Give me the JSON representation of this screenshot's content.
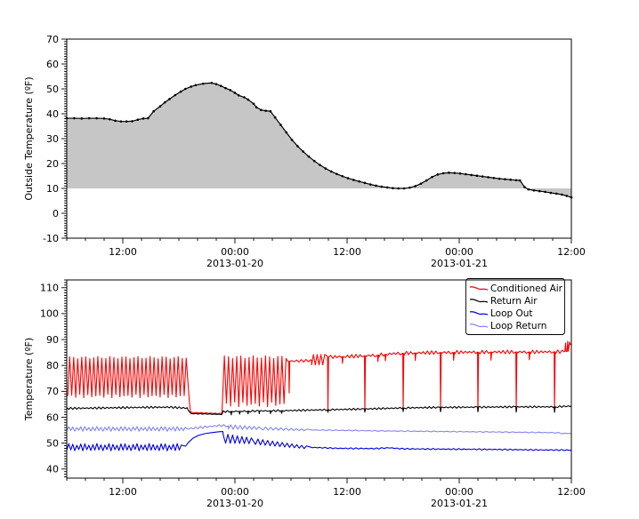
{
  "figure": {
    "background": "#ffffff"
  },
  "chart_data": [
    {
      "id": "outside-temp",
      "type": "area",
      "title": "",
      "ylabel": "Outside Temperature (ºF)",
      "xlabel": "",
      "ylim": [
        -10,
        70
      ],
      "ytick_min": -10,
      "ytick_max": 70,
      "ytick_step": 10,
      "y_minor_step": 1,
      "x_hours": 54,
      "x_minor_step": 2,
      "xticks": [
        {
          "t": 6,
          "label": "12:00"
        },
        {
          "t": 18,
          "label": "00:00",
          "date": "2013-01-20"
        },
        {
          "t": 30,
          "label": "12:00"
        },
        {
          "t": 42,
          "label": "00:00",
          "date": "2013-01-21"
        },
        {
          "t": 54,
          "label": "12:00"
        }
      ],
      "fill_to": 10,
      "fill_color": "#c6c6c6",
      "line_color": "#000000",
      "marker": "dot",
      "points": [
        [
          0,
          38.2
        ],
        [
          0.8,
          38.2
        ],
        [
          1.6,
          38.1
        ],
        [
          2.4,
          38.2
        ],
        [
          3.2,
          38.2
        ],
        [
          4,
          38.1
        ],
        [
          4.6,
          37.8
        ],
        [
          5.2,
          37.2
        ],
        [
          5.8,
          36.9
        ],
        [
          6.4,
          36.9
        ],
        [
          7,
          37.0
        ],
        [
          7.6,
          37.6
        ],
        [
          8.2,
          38.1
        ],
        [
          8.7,
          38.2
        ],
        [
          9.3,
          41.0
        ],
        [
          10,
          43.0
        ],
        [
          10.5,
          44.6
        ],
        [
          11,
          45.9
        ],
        [
          11.6,
          47.5
        ],
        [
          12.2,
          48.9
        ],
        [
          12.7,
          50.0
        ],
        [
          13.3,
          50.9
        ],
        [
          13.8,
          51.5
        ],
        [
          14.6,
          52.1
        ],
        [
          15.5,
          52.4
        ],
        [
          16,
          51.9
        ],
        [
          16.5,
          51.2
        ],
        [
          17,
          50.3
        ],
        [
          17.5,
          49.5
        ],
        [
          18,
          48.4
        ],
        [
          18.4,
          47.4
        ],
        [
          19,
          46.6
        ],
        [
          19.4,
          45.7
        ],
        [
          20,
          44.0
        ],
        [
          20.3,
          42.6
        ],
        [
          20.8,
          41.5
        ],
        [
          21.3,
          41.2
        ],
        [
          21.8,
          41.0
        ],
        [
          22.3,
          38.5
        ],
        [
          22.9,
          35.5
        ],
        [
          23.5,
          32.5
        ],
        [
          24.1,
          29.5
        ],
        [
          24.7,
          27.0
        ],
        [
          25.3,
          24.8
        ],
        [
          25.9,
          22.8
        ],
        [
          26.5,
          21.0
        ],
        [
          27.1,
          19.4
        ],
        [
          27.7,
          18.0
        ],
        [
          28.3,
          16.8
        ],
        [
          28.9,
          15.8
        ],
        [
          29.5,
          14.9
        ],
        [
          30.1,
          14.1
        ],
        [
          30.7,
          13.4
        ],
        [
          31.3,
          12.8
        ],
        [
          31.9,
          12.2
        ],
        [
          32.5,
          11.6
        ],
        [
          33.1,
          11.1
        ],
        [
          33.7,
          10.7
        ],
        [
          34.3,
          10.4
        ],
        [
          34.9,
          10.1
        ],
        [
          35.5,
          10.0
        ],
        [
          36.1,
          10.0
        ],
        [
          36.7,
          10.3
        ],
        [
          37.3,
          10.9
        ],
        [
          37.9,
          11.9
        ],
        [
          38.5,
          13.2
        ],
        [
          39.1,
          14.6
        ],
        [
          39.7,
          15.6
        ],
        [
          40.3,
          16.1
        ],
        [
          40.9,
          16.3
        ],
        [
          41.5,
          16.2
        ],
        [
          42.1,
          16.0
        ],
        [
          42.7,
          15.7
        ],
        [
          43.3,
          15.4
        ],
        [
          43.9,
          15.1
        ],
        [
          44.5,
          14.8
        ],
        [
          45.1,
          14.5
        ],
        [
          45.7,
          14.2
        ],
        [
          46.3,
          13.9
        ],
        [
          46.9,
          13.7
        ],
        [
          47.5,
          13.5
        ],
        [
          48.1,
          13.3
        ],
        [
          48.5,
          13.2
        ],
        [
          49,
          10.5
        ],
        [
          49.4,
          9.6
        ],
        [
          50,
          9.2
        ],
        [
          50.6,
          8.9
        ],
        [
          51.2,
          8.6
        ],
        [
          51.8,
          8.2
        ],
        [
          52.4,
          7.9
        ],
        [
          53,
          7.5
        ],
        [
          53.5,
          7.0
        ],
        [
          54,
          6.4
        ]
      ]
    },
    {
      "id": "temperature",
      "type": "line",
      "title": "",
      "ylabel": "Temperature (ºF)",
      "xlabel": "",
      "ylim": [
        36.5,
        113
      ],
      "ytick_min": 40,
      "ytick_max": 110,
      "ytick_step": 10,
      "y_minor_step": 1,
      "x_hours": 54,
      "x_minor_step": 2,
      "xticks": [
        {
          "t": 6,
          "label": "12:00"
        },
        {
          "t": 18,
          "label": "00:00",
          "date": "2013-01-20"
        },
        {
          "t": 30,
          "label": "12:00"
        },
        {
          "t": 42,
          "label": "00:00",
          "date": "2013-01-21"
        },
        {
          "t": 54,
          "label": "12:00"
        }
      ],
      "legend_position": "upper right",
      "series": [
        {
          "name": "Conditioned Air",
          "color": "#fe0000",
          "parts": [
            {
              "type": "osc",
              "t0": 0.1,
              "t1": 13.1,
              "lo": 68.2,
              "hi": 83.0,
              "period": 0.43,
              "loVar": 1.3,
              "hiVar": 0.9
            },
            {
              "type": "line",
              "pts": [
                [
                  13.12,
                  66.0
                ],
                [
                  13.25,
                  62.0
                ],
                [
                  13.4,
                  61.8
                ]
              ]
            },
            {
              "type": "trend",
              "pts": [
                [
                  13.4,
                  61.8
                ],
                [
                  16.6,
                  61.4
                ]
              ],
              "amp": 0.15,
              "period": 0.5
            },
            {
              "type": "osc",
              "t0": 16.65,
              "t1": 23.6,
              "lo": 65.0,
              "hi": 83.2,
              "period": 0.44,
              "loVar": 1.8,
              "hiVar": 1.1
            },
            {
              "type": "trend",
              "pts": [
                [
                  23.6,
                  81.6
                ],
                [
                  26.2,
                  81.9
                ]
              ],
              "amp": 0.5,
              "period": 0.5,
              "spikes": [
                [
                  23.8,
                  69.4
                ]
              ]
            },
            {
              "type": "osc",
              "t0": 26.2,
              "t1": 27.8,
              "lo": 80.2,
              "hi": 84.2,
              "period": 0.4
            },
            {
              "type": "trend",
              "pts": [
                [
                  27.8,
                  83.2
                ],
                [
                  31,
                  83.6
                ],
                [
                  33,
                  83.9
                ],
                [
                  35,
                  84.6
                ],
                [
                  38,
                  84.9
                ],
                [
                  42,
                  85.1
                ],
                [
                  46,
                  85.2
                ],
                [
                  50,
                  85.2
                ],
                [
                  53.2,
                  85.3
                ]
              ],
              "amp": 0.7,
              "period": 0.45,
              "spikes": [
                [
                  27.95,
                  62.4
                ],
                [
                  31.9,
                  62.2
                ],
                [
                  36.0,
                  62.6
                ],
                [
                  40.0,
                  62.4
                ],
                [
                  44.0,
                  62.3
                ],
                [
                  48.1,
                  62.2
                ],
                [
                  52.2,
                  62.5
                ],
                [
                  29.5,
                  80.8
                ],
                [
                  33.3,
                  81.5
                ],
                [
                  34.1,
                  81.8
                ],
                [
                  37.3,
                  81.9
                ],
                [
                  41.4,
                  82.0
                ],
                [
                  45.4,
                  82.0
                ],
                [
                  49.5,
                  82.2
                ]
              ]
            },
            {
              "type": "line",
              "pts": [
                [
                  53.3,
                  85.3
                ],
                [
                  53.38,
                  88.6
                ],
                [
                  53.44,
                  85.4
                ],
                [
                  53.55,
                  85.4
                ],
                [
                  53.6,
                  89.3
                ],
                [
                  53.68,
                  85.5
                ],
                [
                  53.8,
                  89.0
                ],
                [
                  53.9,
                  88.0
                ],
                [
                  54,
                  88.3
                ]
              ]
            }
          ]
        },
        {
          "name": "Return Air",
          "color": "#000000",
          "parts": [
            {
              "type": "trend",
              "pts": [
                [
                  0,
                  63.4
                ],
                [
                  4,
                  63.6
                ],
                [
                  8,
                  63.8
                ],
                [
                  11,
                  63.9
                ],
                [
                  12.9,
                  63.5
                ]
              ],
              "amp": 0.4,
              "period": 0.43
            },
            {
              "type": "line",
              "pts": [
                [
                  13.05,
                  62.4
                ],
                [
                  13.3,
                  61.4
                ]
              ]
            },
            {
              "type": "trend",
              "pts": [
                [
                  13.3,
                  61.4
                ],
                [
                  16.6,
                  61.1
                ]
              ],
              "amp": 0.12,
              "period": 0.5
            },
            {
              "type": "trend",
              "pts": [
                [
                  16.75,
                  62.2
                ],
                [
                  20,
                  62.4
                ],
                [
                  24,
                  62.6
                ],
                [
                  28,
                  62.9
                ],
                [
                  32,
                  63.2
                ],
                [
                  36,
                  63.6
                ],
                [
                  40,
                  63.8
                ],
                [
                  44,
                  63.9
                ],
                [
                  48,
                  64.0
                ],
                [
                  52,
                  64.0
                ],
                [
                  54,
                  64.3
                ]
              ],
              "amp": 0.35,
              "period": 0.45,
              "spikes": [
                [
                  17.6,
                  60.9
                ],
                [
                  18.5,
                  61.2
                ],
                [
                  19.4,
                  61.3
                ],
                [
                  20.6,
                  61.4
                ],
                [
                  21.8,
                  61.4
                ],
                [
                  23.0,
                  61.5
                ],
                [
                  27.95,
                  61.9
                ],
                [
                  31.9,
                  62.0
                ],
                [
                  36.0,
                  62.2
                ],
                [
                  40.0,
                  62.1
                ],
                [
                  44.0,
                  62.1
                ],
                [
                  48.1,
                  62.0
                ],
                [
                  52.2,
                  61.9
                ]
              ]
            }
          ]
        },
        {
          "name": "Loop Out",
          "color": "#0000dd",
          "parts": [
            {
              "type": "osc",
              "t0": 0,
              "t1": 12.6,
              "lo": 47.3,
              "hi": 49.5,
              "period": 0.43,
              "loVar": 0.5,
              "hiVar": 0.7
            },
            {
              "type": "line",
              "pts": [
                [
                  12.7,
                  48.8
                ],
                [
                  13.0,
                  50.2
                ],
                [
                  13.5,
                  51.9
                ],
                [
                  14.1,
                  53.0
                ],
                [
                  14.8,
                  53.7
                ],
                [
                  15.6,
                  54.1
                ],
                [
                  16.3,
                  54.4
                ],
                [
                  16.7,
                  54.5
                ]
              ]
            },
            {
              "type": "line",
              "pts": [
                [
                  16.78,
                  52.6
                ],
                [
                  16.95,
                  50.7
                ]
              ]
            },
            {
              "type": "osc",
              "t0": 17.0,
              "t1": 20.2,
              "lo": 50.0,
              "hi": 53.4,
              "lo1": 49.8,
              "hi1": 52.0,
              "period": 0.5
            },
            {
              "type": "osc",
              "t0": 20.2,
              "t1": 26.0,
              "lo": 49.5,
              "hi": 51.6,
              "lo1": 47.9,
              "hi1": 48.9,
              "period": 0.52
            },
            {
              "type": "trend",
              "pts": [
                [
                  26,
                  48.4
                ],
                [
                  29,
                  48.0
                ],
                [
                  33,
                  47.9
                ],
                [
                  34.5,
                  48.2
                ],
                [
                  36,
                  47.8
                ],
                [
                  40,
                  47.7
                ],
                [
                  45,
                  47.6
                ],
                [
                  50,
                  47.4
                ],
                [
                  54,
                  47.3
                ]
              ],
              "amp": 0.25,
              "period": 0.55
            }
          ]
        },
        {
          "name": "Loop Return",
          "color": "#8585ef",
          "parts": [
            {
              "type": "osc",
              "t0": 0,
              "t1": 12.8,
              "lo": 54.8,
              "hi": 56.2,
              "period": 0.43,
              "loVar": 0.4,
              "hiVar": 0.4
            },
            {
              "type": "trend",
              "pts": [
                [
                  12.8,
                  55.5
                ],
                [
                  14.5,
                  56.1
                ],
                [
                  16.3,
                  56.8
                ],
                [
                  17.3,
                  56.7
                ]
              ],
              "amp": 0.45,
              "period": 0.5
            },
            {
              "type": "osc",
              "t0": 17.3,
              "t1": 21.0,
              "lo": 55.4,
              "hi": 57.1,
              "lo1": 55.3,
              "hi1": 56.3,
              "period": 0.5
            },
            {
              "type": "osc",
              "t0": 21.0,
              "t1": 26.0,
              "lo": 55.1,
              "hi": 56.2,
              "lo1": 54.8,
              "hi1": 55.4,
              "period": 0.55
            },
            {
              "type": "trend",
              "pts": [
                [
                  26,
                  55.1
                ],
                [
                  30,
                  54.9
                ],
                [
                  34,
                  54.7
                ],
                [
                  40,
                  54.5
                ],
                [
                  46,
                  54.3
                ],
                [
                  51,
                  54.1
                ],
                [
                  52.5,
                  54.0
                ],
                [
                  53.2,
                  53.7
                ],
                [
                  54,
                  53.8
                ]
              ],
              "amp": 0.2,
              "period": 0.7
            }
          ]
        }
      ]
    }
  ]
}
